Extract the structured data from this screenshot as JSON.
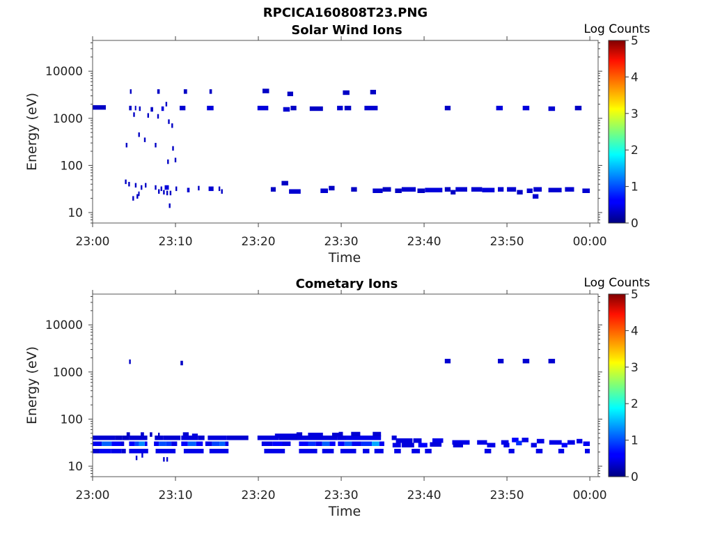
{
  "suptitle": "RPCICA160808T23.PNG",
  "chart_data": [
    {
      "type": "heatmap",
      "title": "Solar Wind Ions",
      "xlabel": "Time",
      "ylabel": "Energy (eV)",
      "y_scale": "log",
      "ylim": [
        6,
        45000
      ],
      "xlim_minutes": [
        0,
        61
      ],
      "x_tick_labels": [
        "23:00",
        "23:10",
        "23:20",
        "23:30",
        "23:40",
        "23:50",
        "00:00"
      ],
      "x_tick_minutes": [
        0,
        10,
        20,
        30,
        40,
        50,
        60
      ],
      "y_tick_labels": [
        "10",
        "100",
        "1000",
        "10000"
      ],
      "y_tick_values": [
        10,
        100,
        1000,
        10000
      ],
      "colorbar": {
        "label": "Log Counts",
        "range": [
          0,
          5
        ],
        "ticks": [
          "0",
          "1",
          "2",
          "3",
          "4",
          "5"
        ]
      },
      "cells": [
        [
          0,
          1.6,
          1700,
          0.3
        ],
        [
          4.4,
          4.7,
          1650,
          0.3
        ],
        [
          5.1,
          5.2,
          1650,
          0.3
        ],
        [
          5.6,
          5.8,
          1600,
          0.3
        ],
        [
          7.0,
          7.3,
          1550,
          0.3
        ],
        [
          8.3,
          8.6,
          1600,
          0.4
        ],
        [
          10.5,
          11.2,
          1650,
          0.35
        ],
        [
          13.8,
          14.6,
          1650,
          0.4
        ],
        [
          19.9,
          21.2,
          1650,
          0.4
        ],
        [
          23.0,
          23.8,
          1550,
          0.35
        ],
        [
          23.9,
          24.6,
          1650,
          0.3
        ],
        [
          26.2,
          27.8,
          1600,
          0.3
        ],
        [
          29.5,
          30.2,
          1650,
          0.35
        ],
        [
          30.4,
          31.2,
          1650,
          0.3
        ],
        [
          32.8,
          34.4,
          1650,
          0.35
        ],
        [
          42.5,
          43.2,
          1650,
          0.3
        ],
        [
          48.7,
          49.5,
          1650,
          0.4
        ],
        [
          51.9,
          52.7,
          1650,
          0.4
        ],
        [
          55.0,
          55.8,
          1600,
          0.35
        ],
        [
          58.2,
          59.0,
          1650,
          0.3
        ],
        [
          4.5,
          4.7,
          3700,
          0.3
        ],
        [
          7.8,
          8.1,
          3700,
          0.3
        ],
        [
          11.0,
          11.4,
          3700,
          0.3
        ],
        [
          14.1,
          14.4,
          3700,
          0.3
        ],
        [
          20.5,
          21.3,
          3800,
          0.3
        ],
        [
          23.5,
          24.2,
          3300,
          0.3
        ],
        [
          30.2,
          31.0,
          3500,
          0.3
        ],
        [
          33.5,
          34.2,
          3600,
          0.3
        ],
        [
          4.9,
          5.1,
          1200,
          0.3
        ],
        [
          6.6,
          6.8,
          1150,
          0.3
        ],
        [
          7.8,
          8.0,
          1100,
          0.3
        ],
        [
          8.8,
          9.0,
          2000,
          0.3
        ],
        [
          9.1,
          9.3,
          850,
          0.3
        ],
        [
          9.5,
          9.7,
          700,
          0.3
        ],
        [
          5.5,
          5.7,
          450,
          0.3
        ],
        [
          6.2,
          6.4,
          350,
          0.3
        ],
        [
          4.0,
          4.2,
          270,
          0.3
        ],
        [
          7.5,
          7.7,
          270,
          0.3
        ],
        [
          9.6,
          9.8,
          230,
          0.3
        ],
        [
          9.0,
          9.2,
          120,
          0.3
        ],
        [
          9.9,
          10.1,
          130,
          0.3
        ],
        [
          3.9,
          4.1,
          45,
          0.3
        ],
        [
          4.3,
          4.5,
          40,
          0.3
        ],
        [
          5.1,
          5.3,
          38,
          0.3
        ],
        [
          5.8,
          6.0,
          34,
          0.3
        ],
        [
          6.3,
          6.5,
          38,
          0.3
        ],
        [
          7.5,
          7.7,
          34,
          0.3
        ],
        [
          8.2,
          8.4,
          32,
          0.3
        ],
        [
          8.7,
          9.2,
          34,
          0.4
        ],
        [
          10.0,
          10.2,
          32,
          0.3
        ],
        [
          11.4,
          11.7,
          30,
          0.35
        ],
        [
          12.7,
          12.9,
          33,
          0.3
        ],
        [
          14.0,
          14.6,
          32,
          0.35
        ],
        [
          15.2,
          15.4,
          32,
          0.3
        ],
        [
          15.5,
          15.7,
          28,
          0.3
        ],
        [
          4.8,
          5.0,
          20,
          0.3
        ],
        [
          5.3,
          5.5,
          22,
          0.3
        ],
        [
          5.5,
          5.6,
          25,
          0.3
        ],
        [
          7.9,
          8.1,
          28,
          0.3
        ],
        [
          8.5,
          8.7,
          27,
          0.3
        ],
        [
          8.9,
          9.1,
          26,
          0.3
        ],
        [
          9.3,
          9.5,
          26,
          0.3
        ],
        [
          9.2,
          9.4,
          14,
          0.3
        ],
        [
          21.5,
          22.1,
          31,
          0.3
        ],
        [
          22.8,
          23.6,
          42,
          0.3
        ],
        [
          23.7,
          25.1,
          28,
          0.35
        ],
        [
          27.5,
          28.4,
          29,
          0.35
        ],
        [
          28.5,
          29.2,
          33,
          0.3
        ],
        [
          31.2,
          31.9,
          31,
          0.3
        ],
        [
          33.8,
          35.0,
          29,
          0.35
        ],
        [
          35.0,
          36.0,
          31,
          0.3
        ],
        [
          36.5,
          37.3,
          29,
          0.3
        ],
        [
          37.3,
          39.0,
          31,
          0.35
        ],
        [
          39.2,
          40.1,
          29,
          0.3
        ],
        [
          40.1,
          42.2,
          30,
          0.4
        ],
        [
          42.5,
          43.2,
          31,
          0.3
        ],
        [
          43.2,
          43.8,
          27,
          0.3
        ],
        [
          43.8,
          45.2,
          31,
          0.35
        ],
        [
          45.7,
          47.0,
          31,
          0.35
        ],
        [
          47.0,
          48.5,
          30,
          0.4
        ],
        [
          48.9,
          49.6,
          31,
          0.35
        ],
        [
          50.0,
          51.1,
          31,
          0.35
        ],
        [
          51.2,
          51.9,
          27,
          0.3
        ],
        [
          52.4,
          53.1,
          29,
          0.35
        ],
        [
          53.1,
          53.8,
          22,
          0.35
        ],
        [
          53.2,
          54.2,
          31,
          0.35
        ],
        [
          55.0,
          56.6,
          30,
          0.35
        ],
        [
          57.0,
          58.1,
          31,
          0.35
        ],
        [
          59.1,
          60.0,
          29,
          0.35
        ]
      ]
    },
    {
      "type": "heatmap",
      "title": "Cometary Ions",
      "xlabel": "Time",
      "ylabel": "Energy (eV)",
      "y_scale": "log",
      "ylim": [
        6,
        45000
      ],
      "xlim_minutes": [
        0,
        61
      ],
      "x_tick_labels": [
        "23:00",
        "23:10",
        "23:20",
        "23:30",
        "23:40",
        "23:50",
        "00:00"
      ],
      "x_tick_minutes": [
        0,
        10,
        20,
        30,
        40,
        50,
        60
      ],
      "y_tick_labels": [
        "10",
        "100",
        "1000",
        "10000"
      ],
      "y_tick_values": [
        10,
        100,
        1000,
        10000
      ],
      "colorbar": {
        "label": "Log Counts",
        "range": [
          0,
          5
        ],
        "ticks": [
          "0",
          "1",
          "2",
          "3",
          "4",
          "5"
        ]
      },
      "cells": [
        [
          0,
          1.6,
          40,
          0.35
        ],
        [
          1.6,
          2.7,
          40,
          0.35
        ],
        [
          2.7,
          3.6,
          40,
          0.3
        ],
        [
          3.6,
          4.1,
          40,
          0.3
        ],
        [
          0,
          1.1,
          30,
          0.5
        ],
        [
          1.1,
          2.3,
          30,
          1.1
        ],
        [
          2.3,
          3.4,
          30,
          0.6
        ],
        [
          3.4,
          3.8,
          30,
          0.4
        ],
        [
          0,
          0.8,
          21,
          0.35
        ],
        [
          0.8,
          2.2,
          21,
          0.5
        ],
        [
          2.2,
          3.5,
          21,
          0.45
        ],
        [
          3.5,
          4.0,
          21,
          0.35
        ],
        [
          4.1,
          4.5,
          47,
          0.3
        ],
        [
          4.0,
          4.4,
          40,
          0.3
        ],
        [
          4.4,
          6.6,
          40,
          0.35
        ],
        [
          5.8,
          6.2,
          47,
          0.35
        ],
        [
          6.9,
          7.2,
          47,
          0.3
        ],
        [
          4.4,
          5.1,
          30,
          0.55
        ],
        [
          5.1,
          5.6,
          30,
          0.95
        ],
        [
          5.6,
          6.3,
          30,
          1.3
        ],
        [
          6.3,
          6.6,
          30,
          0.5
        ],
        [
          4.4,
          6.7,
          21,
          0.45
        ],
        [
          5.2,
          5.4,
          15,
          0.35
        ],
        [
          5.9,
          6.1,
          17,
          0.35
        ],
        [
          7.5,
          8.5,
          40,
          0.35
        ],
        [
          7.9,
          8.1,
          46,
          0.3
        ],
        [
          8.5,
          10.6,
          40,
          0.35
        ],
        [
          7.4,
          8.0,
          30,
          0.5
        ],
        [
          8.0,
          8.9,
          30,
          1.0
        ],
        [
          8.9,
          9.5,
          30,
          0.9
        ],
        [
          9.5,
          10.2,
          30,
          0.45
        ],
        [
          7.6,
          10.0,
          21,
          0.45
        ],
        [
          8.5,
          8.7,
          14,
          0.35
        ],
        [
          8.9,
          9.1,
          14,
          0.35
        ],
        [
          10.9,
          11.6,
          47,
          0.35
        ],
        [
          10.7,
          12.7,
          40,
          0.4
        ],
        [
          12.7,
          13.5,
          40,
          0.35
        ],
        [
          12.0,
          12.7,
          44,
          0.4
        ],
        [
          10.7,
          11.5,
          30,
          0.55
        ],
        [
          11.5,
          12.5,
          30,
          1.1
        ],
        [
          12.5,
          13.3,
          30,
          0.6
        ],
        [
          11.0,
          13.4,
          21,
          0.45
        ],
        [
          13.9,
          16.2,
          40,
          0.4
        ],
        [
          16.2,
          18.8,
          40,
          0.35
        ],
        [
          13.6,
          14.4,
          30,
          0.45
        ],
        [
          14.4,
          15.3,
          30,
          0.95
        ],
        [
          15.3,
          16.0,
          30,
          1.1
        ],
        [
          16.0,
          16.4,
          30,
          0.45
        ],
        [
          14.1,
          16.4,
          21,
          0.45
        ],
        [
          4.4,
          4.6,
          1650,
          0.3
        ],
        [
          10.6,
          10.9,
          1550,
          0.3
        ],
        [
          19.9,
          22.5,
          40,
          0.4
        ],
        [
          22.5,
          25.0,
          40,
          0.35
        ],
        [
          22.0,
          24.7,
          44,
          0.4
        ],
        [
          24.6,
          25.3,
          47,
          0.35
        ],
        [
          20.4,
          21.7,
          30,
          0.45
        ],
        [
          21.7,
          22.9,
          30,
          0.6
        ],
        [
          22.9,
          23.9,
          30,
          0.45
        ],
        [
          20.7,
          23.2,
          21,
          0.45
        ],
        [
          24.7,
          29.5,
          40,
          0.4
        ],
        [
          26.0,
          27.8,
          46,
          0.4
        ],
        [
          28.9,
          29.8,
          46,
          0.35
        ],
        [
          24.9,
          26.0,
          30,
          0.55
        ],
        [
          26.0,
          26.9,
          30,
          0.85
        ],
        [
          26.9,
          27.7,
          30,
          0.5
        ],
        [
          27.7,
          28.6,
          30,
          1.1
        ],
        [
          28.6,
          29.3,
          30,
          0.55
        ],
        [
          24.9,
          27.1,
          21,
          0.45
        ],
        [
          27.7,
          29.1,
          21,
          0.45
        ],
        [
          29.5,
          30.8,
          40,
          0.4
        ],
        [
          30.6,
          34.8,
          40,
          0.45
        ],
        [
          29.7,
          30.2,
          48,
          0.35
        ],
        [
          31.2,
          32.3,
          48,
          0.35
        ],
        [
          33.8,
          34.8,
          48,
          0.35
        ],
        [
          29.6,
          30.4,
          30,
          0.6
        ],
        [
          30.4,
          31.3,
          30,
          1.05
        ],
        [
          31.3,
          32.4,
          30,
          0.5
        ],
        [
          32.4,
          33.7,
          30,
          0.85
        ],
        [
          33.7,
          34.6,
          30,
          1.45
        ],
        [
          34.6,
          35.2,
          30,
          0.5
        ],
        [
          29.9,
          31.8,
          21,
          0.45
        ],
        [
          32.6,
          33.4,
          21,
          0.45
        ],
        [
          34.0,
          35.1,
          21,
          0.45
        ],
        [
          36.1,
          36.7,
          40,
          0.4
        ],
        [
          36.6,
          38.6,
          35,
          0.4
        ],
        [
          36.2,
          37.2,
          28,
          0.45
        ],
        [
          37.3,
          38.8,
          28,
          0.4
        ],
        [
          36.4,
          37.2,
          21,
          0.45
        ],
        [
          38.5,
          39.5,
          21,
          0.45
        ],
        [
          38.7,
          39.7,
          35,
          0.4
        ],
        [
          39.3,
          40.4,
          28,
          0.55
        ],
        [
          40.1,
          40.9,
          21,
          0.45
        ],
        [
          41.0,
          42.3,
          35,
          0.45
        ],
        [
          40.7,
          42.1,
          29,
          0.4
        ],
        [
          42.5,
          43.2,
          1700,
          0.35
        ],
        [
          43.4,
          45.5,
          32,
          0.45
        ],
        [
          43.5,
          44.7,
          28,
          0.4
        ],
        [
          46.4,
          47.6,
          32,
          0.45
        ],
        [
          47.6,
          48.6,
          28,
          0.45
        ],
        [
          47.3,
          48.1,
          21,
          0.45
        ],
        [
          48.9,
          49.6,
          1700,
          0.35
        ],
        [
          49.3,
          50.2,
          32,
          0.45
        ],
        [
          49.6,
          50.3,
          28,
          0.45
        ],
        [
          50.2,
          50.9,
          21,
          0.45
        ],
        [
          50.6,
          51.4,
          36,
          0.55
        ],
        [
          51.1,
          51.8,
          31,
          0.85
        ],
        [
          51.8,
          52.6,
          36,
          0.45
        ],
        [
          51.9,
          52.7,
          1700,
          0.35
        ],
        [
          53.6,
          54.5,
          34,
          0.45
        ],
        [
          52.9,
          53.6,
          28,
          0.45
        ],
        [
          53.5,
          54.3,
          21,
          0.45
        ],
        [
          55.0,
          55.8,
          1700,
          0.35
        ],
        [
          55.1,
          56.6,
          32,
          0.45
        ],
        [
          56.6,
          57.3,
          28,
          0.55
        ],
        [
          56.2,
          56.9,
          21,
          0.45
        ],
        [
          57.3,
          58.2,
          32,
          0.45
        ],
        [
          58.4,
          59.1,
          34,
          0.45
        ],
        [
          59.2,
          60.0,
          30,
          0.5
        ],
        [
          59.4,
          60.0,
          21,
          0.45
        ]
      ]
    }
  ]
}
